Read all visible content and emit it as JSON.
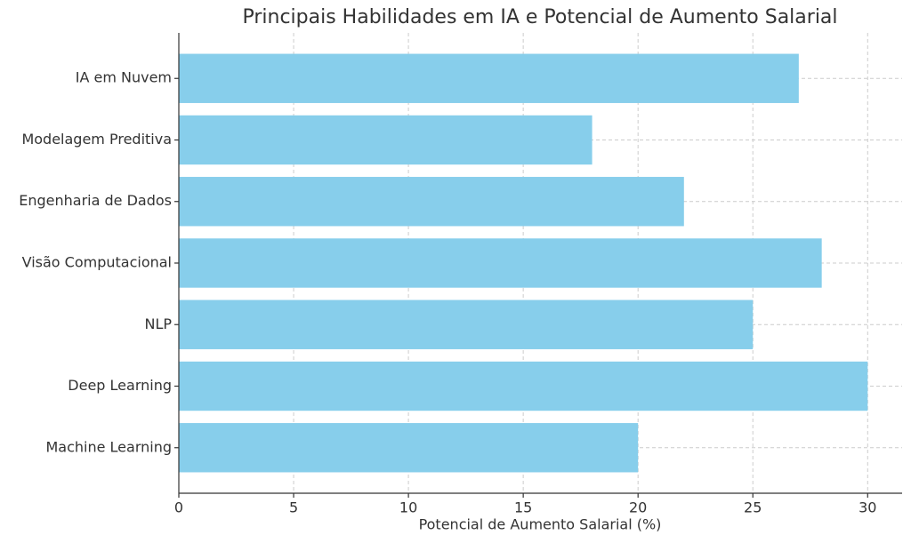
{
  "chart_data": {
    "type": "barh",
    "title": "Principais Habilidades em IA e Potencial de Aumento Salarial",
    "x_label": "Potencial de Aumento Salarial (%)",
    "categories": [
      "Machine Learning",
      "Deep Learning",
      "NLP",
      "Visão Computacional",
      "Engenharia de Dados",
      "Modelagem Preditiva",
      "IA em Nuvem"
    ],
    "values": [
      20,
      30,
      25,
      28,
      22,
      18,
      27
    ],
    "color": "#87ceeb",
    "xlim": [
      0,
      31.5
    ],
    "xticks": [
      0,
      5,
      10,
      15,
      20,
      25,
      30
    ],
    "grid": true
  }
}
